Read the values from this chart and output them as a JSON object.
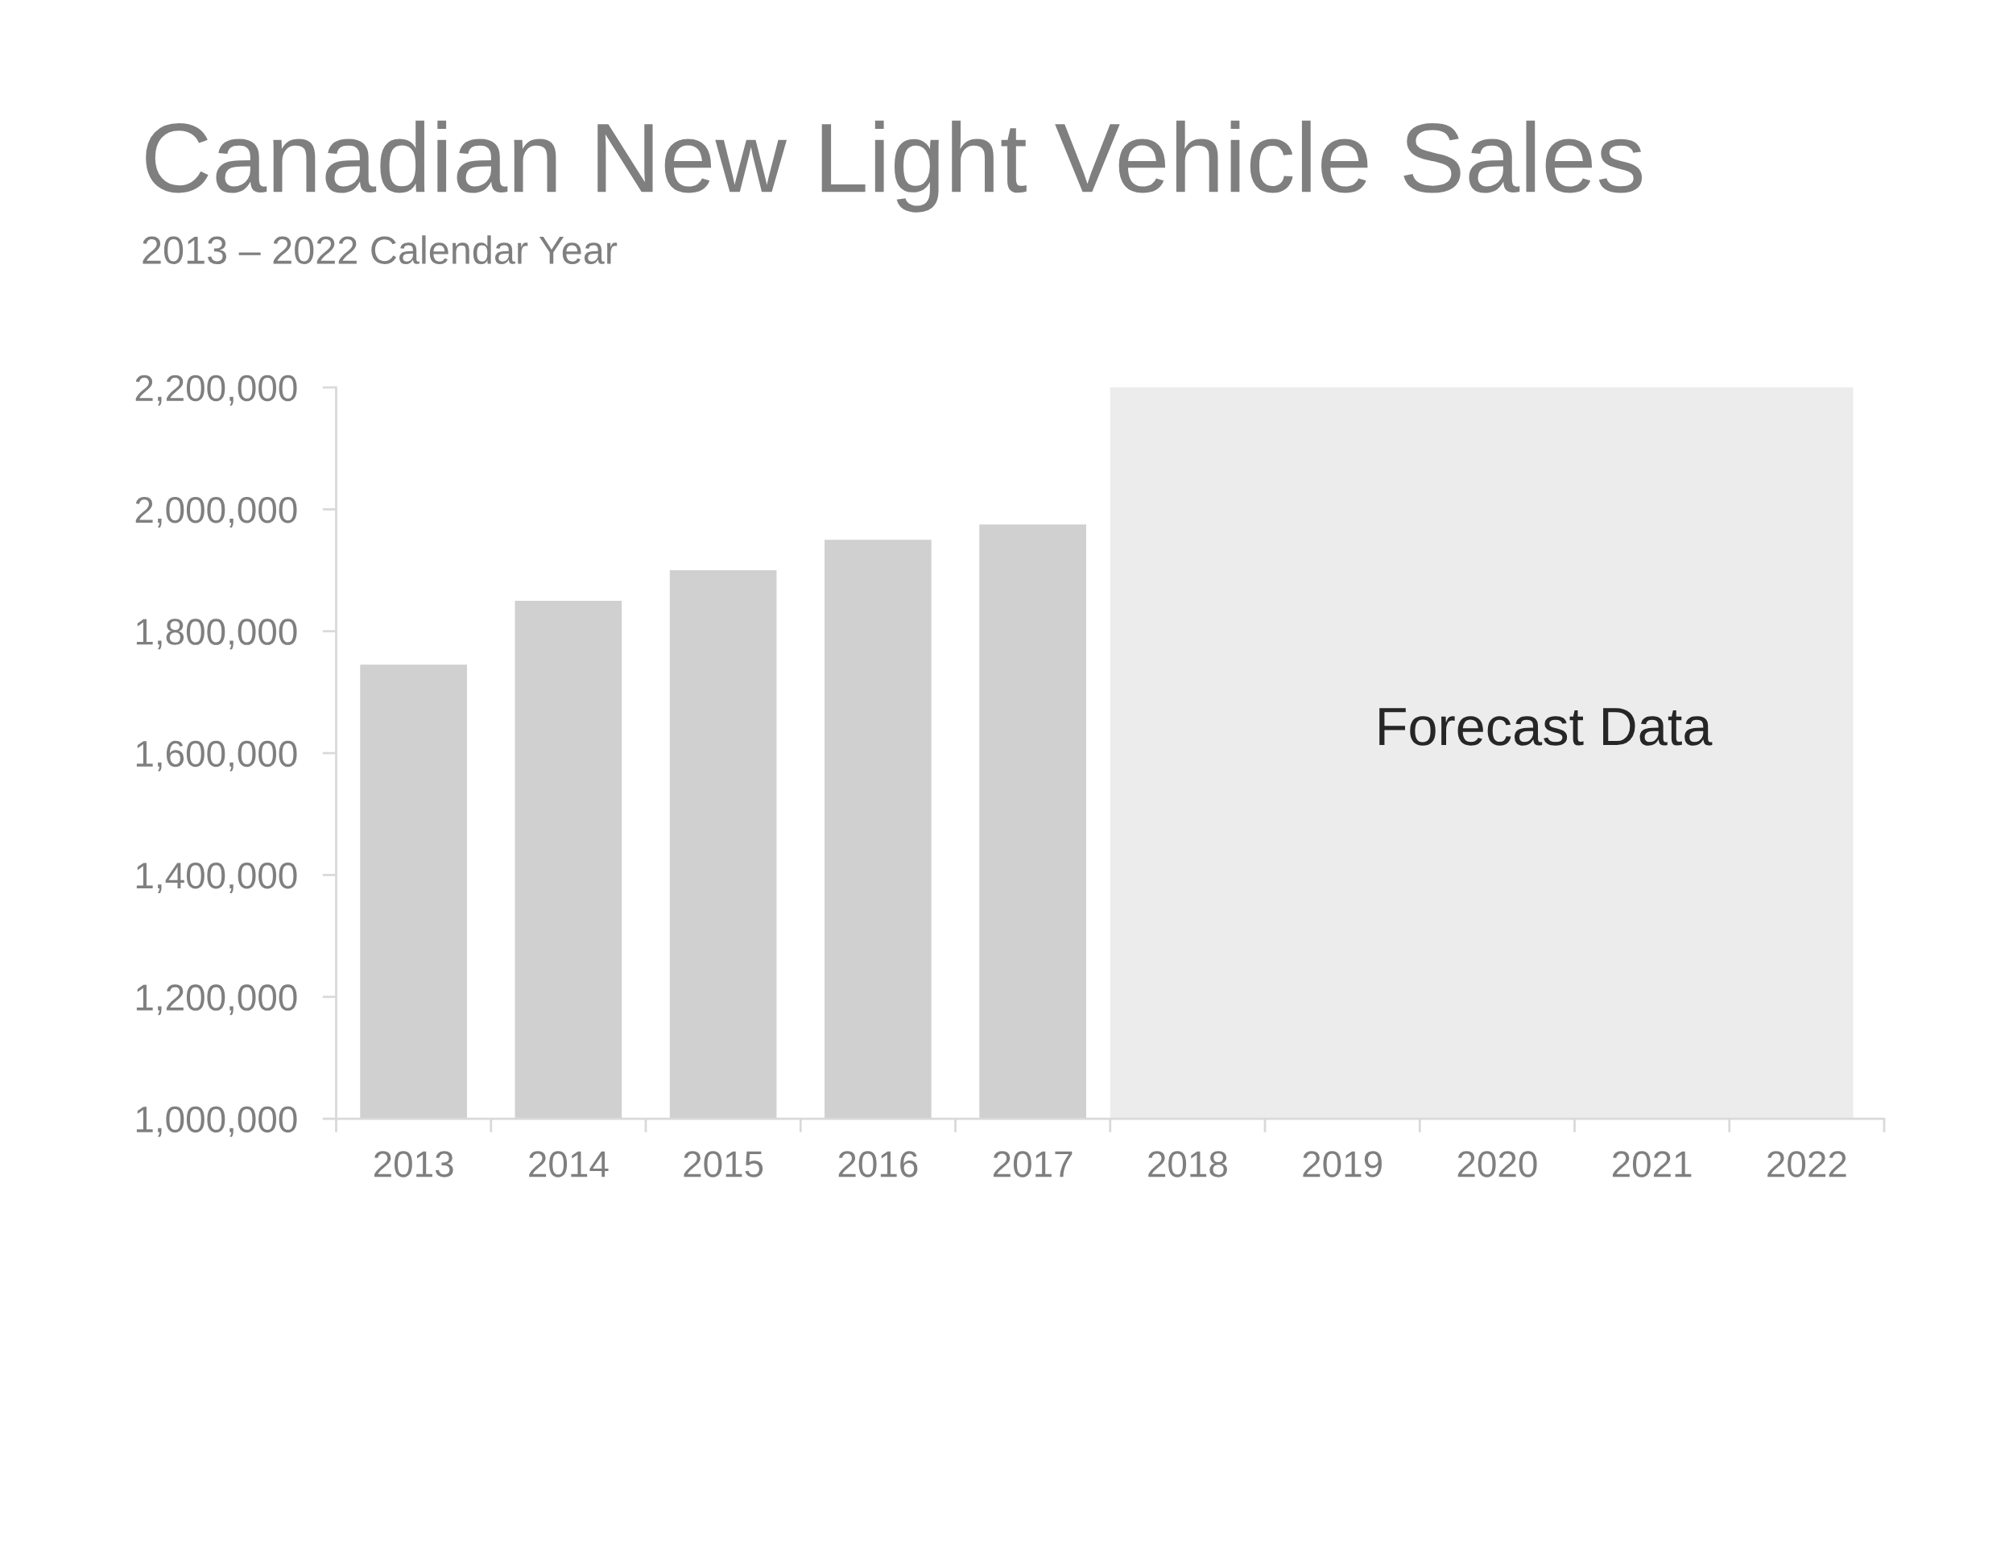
{
  "chart_data": {
    "type": "bar",
    "title": "Canadian New Light Vehicle Sales",
    "subtitle": "2013 – 2022 Calendar Year",
    "categories": [
      "2013",
      "2014",
      "2015",
      "2016",
      "2017",
      "2018",
      "2019",
      "2020",
      "2021",
      "2022"
    ],
    "values": [
      1745000,
      1850000,
      1900000,
      1950000,
      1975000,
      null,
      null,
      null,
      null,
      null
    ],
    "color": "#d0d0d0",
    "ylim": [
      1000000,
      2200000
    ],
    "yticks": [
      {
        "value": 1000000,
        "label": "1,000,000"
      },
      {
        "value": 1200000,
        "label": "1,200,000"
      },
      {
        "value": 1400000,
        "label": "1,400,000"
      },
      {
        "value": 1600000,
        "label": "1,600,000"
      },
      {
        "value": 1800000,
        "label": "1,800,000"
      },
      {
        "value": 2000000,
        "label": "2,000,000"
      },
      {
        "value": 2200000,
        "label": "2,200,000"
      }
    ],
    "bands": [
      {
        "axis": "x",
        "from": "2018",
        "to": "2022",
        "label": "Forecast Data",
        "color": "#ececec"
      }
    ],
    "grid": false,
    "legend": false
  }
}
